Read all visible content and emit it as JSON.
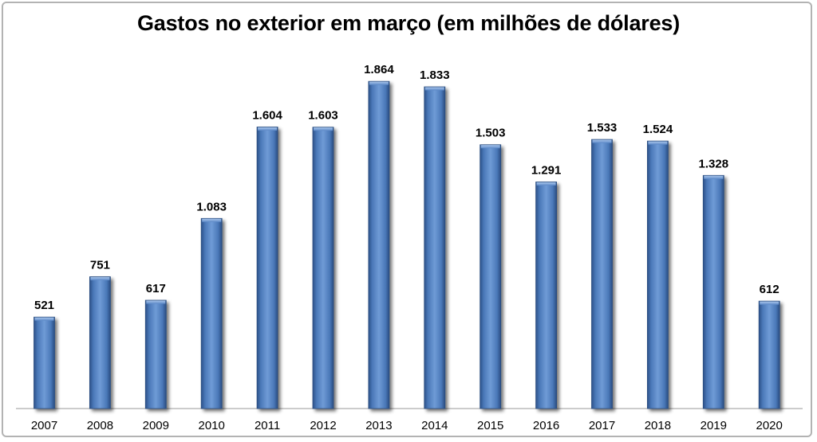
{
  "chart_data": {
    "type": "bar",
    "title": "Gastos no exterior em março (em milhões de dólares)",
    "xlabel": "",
    "ylabel": "",
    "categories": [
      "2007",
      "2008",
      "2009",
      "2010",
      "2011",
      "2012",
      "2013",
      "2014",
      "2015",
      "2016",
      "2017",
      "2018",
      "2019",
      "2020"
    ],
    "values": [
      521,
      751,
      617,
      1083,
      1604,
      1603,
      1864,
      1833,
      1503,
      1291,
      1533,
      1524,
      1328,
      612
    ],
    "value_labels": [
      "521",
      "751",
      "617",
      "1.083",
      "1.604",
      "1.603",
      "1.864",
      "1.833",
      "1.503",
      "1.291",
      "1.533",
      "1.524",
      "1.328",
      "612"
    ],
    "ylim": [
      0,
      2000
    ],
    "grid": false,
    "legend": "none",
    "bar_color": "#4f81bd"
  }
}
